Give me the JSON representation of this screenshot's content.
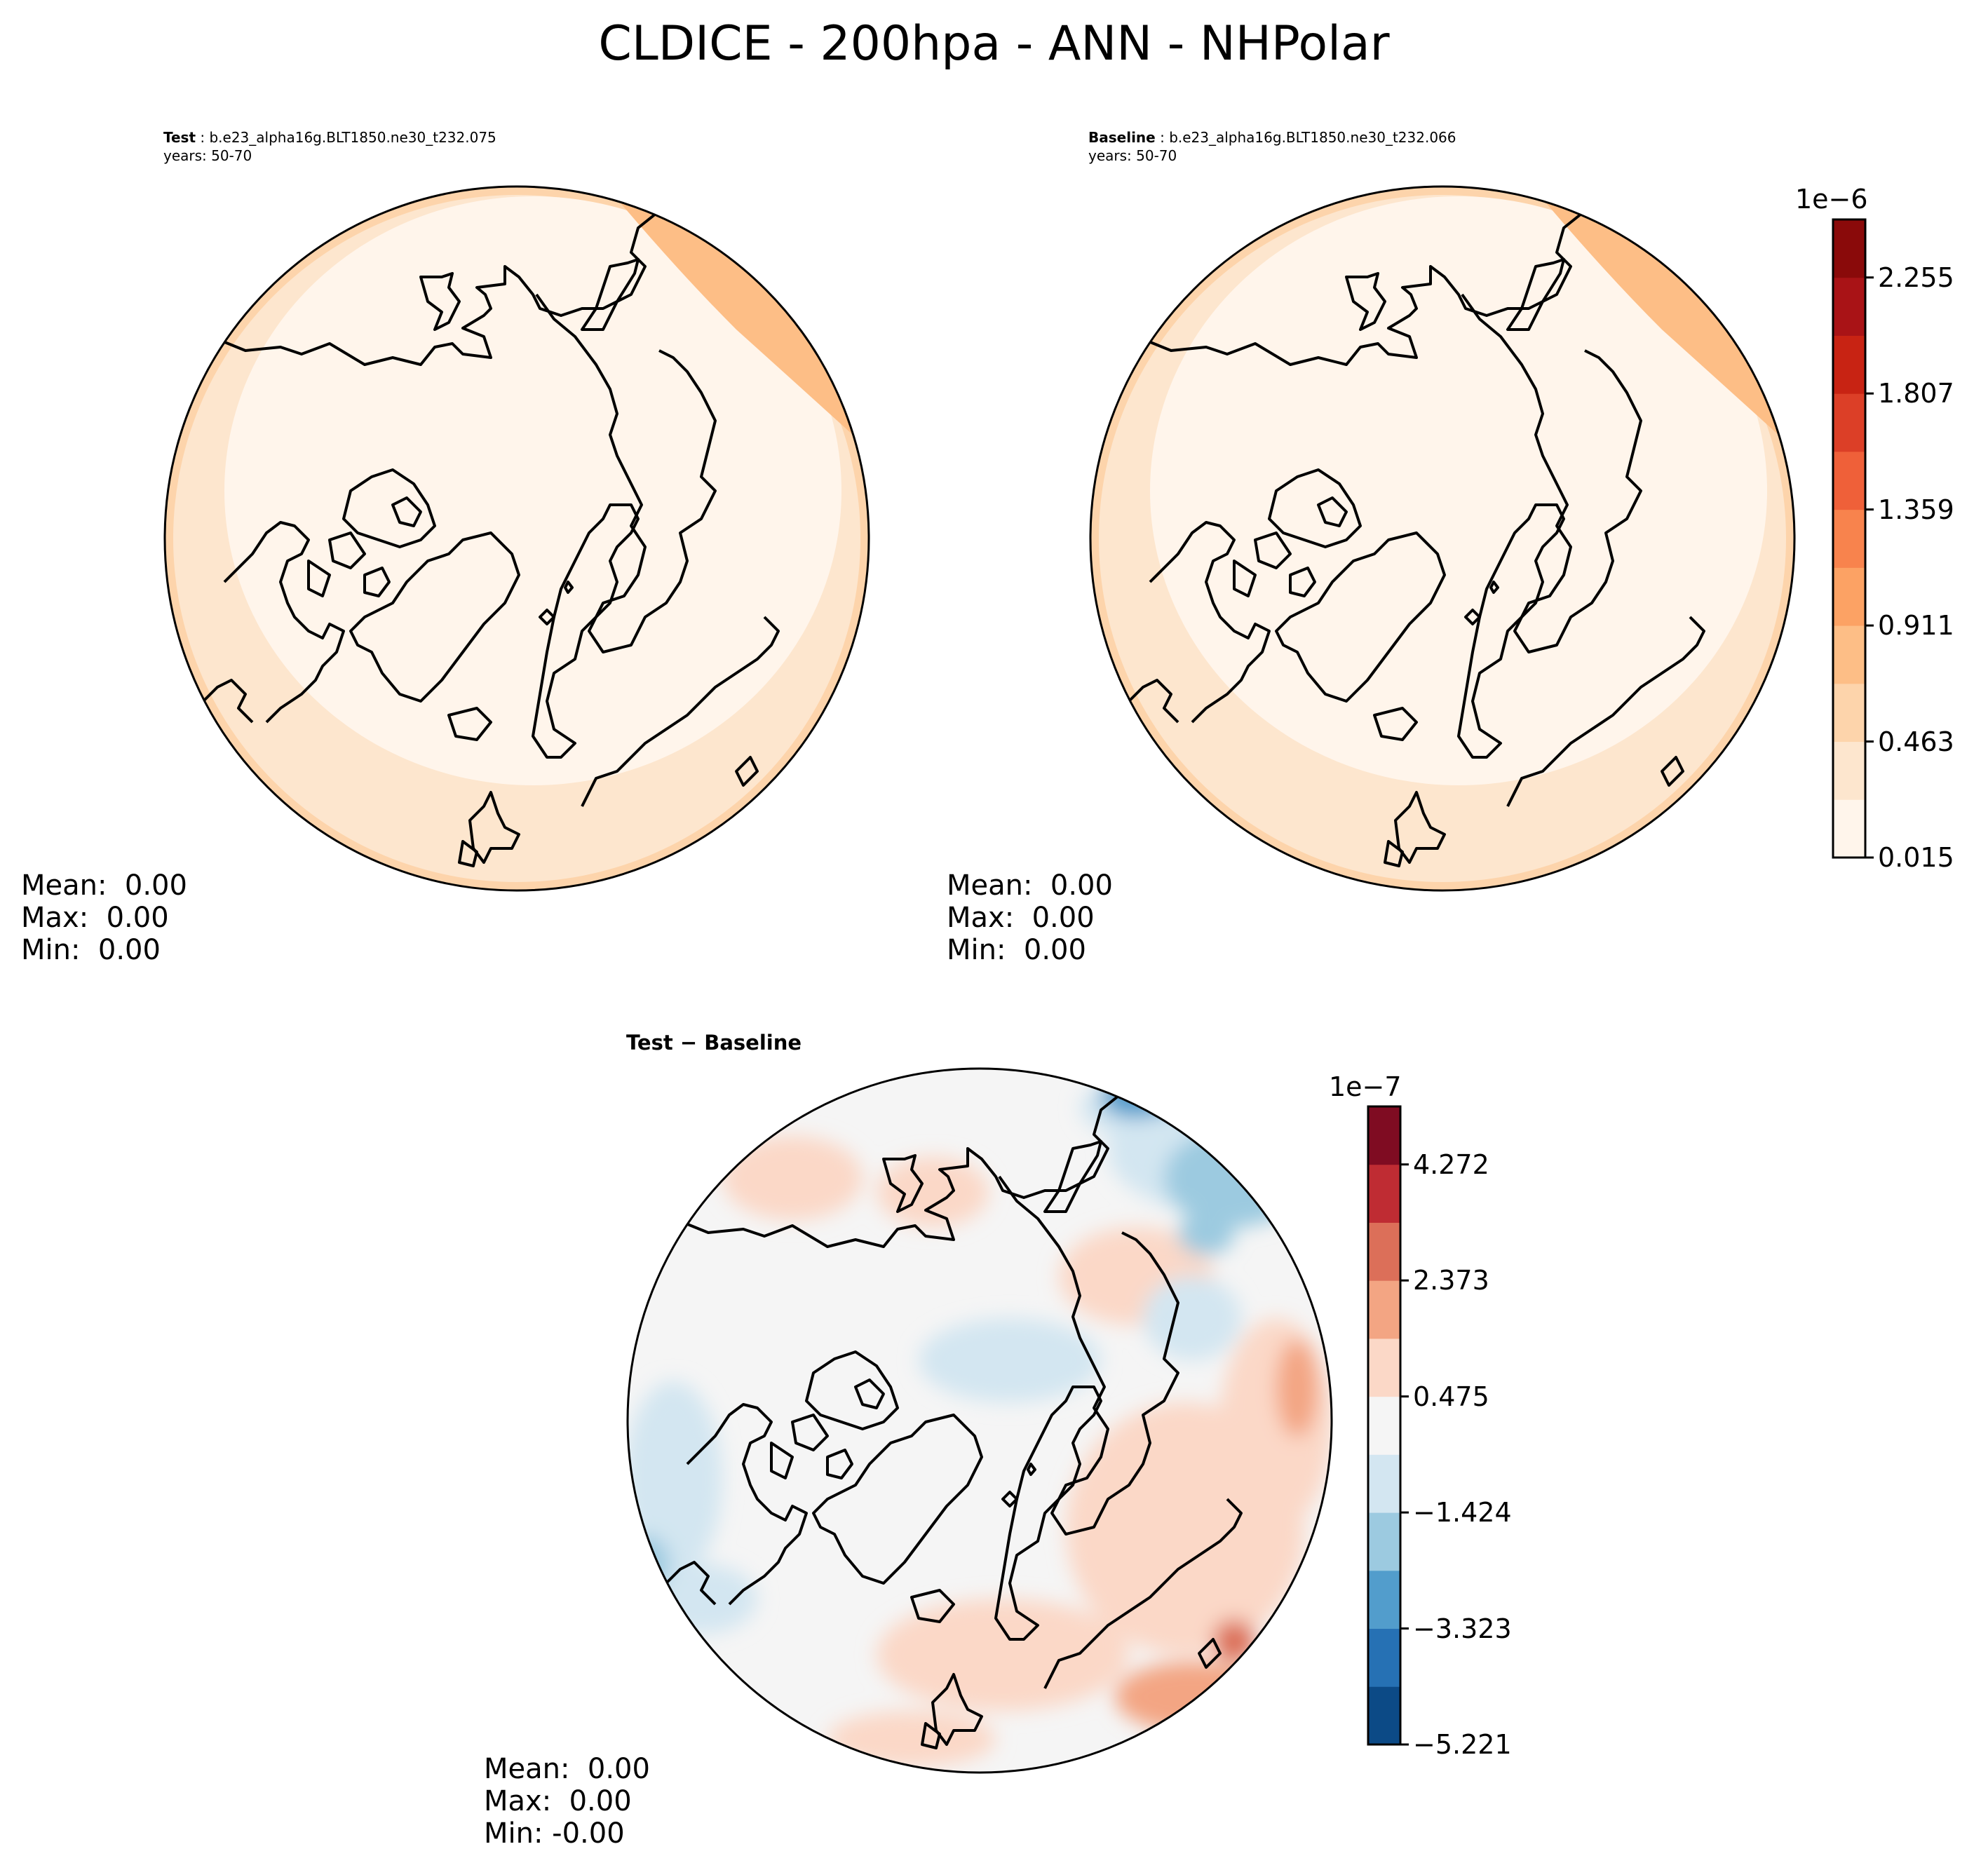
{
  "title": "CLDICE - 200hpa - ANN - NHPolar",
  "panels": {
    "test": {
      "label_bold": "Test",
      "case": " : b.e23_alpha16g.BLT1850.ne30_t232.075",
      "years": "years: 50-70",
      "stats": {
        "mean": "Mean:  0.00",
        "max": "Max:  0.00",
        "min": "Min:  0.00"
      }
    },
    "baseline": {
      "label_bold": "Baseline",
      "case": " : b.e23_alpha16g.BLT1850.ne30_t232.066",
      "years": "years: 50-70",
      "stats": {
        "mean": "Mean:  0.00",
        "max": "Max:  0.00",
        "min": "Min:  0.00"
      }
    },
    "diff": {
      "label": "Test − Baseline",
      "stats": {
        "mean": "Mean:  0.00",
        "max": "Max:  0.00",
        "min": "Min: -0.00"
      }
    }
  },
  "colorbars": {
    "main": {
      "scale": "1e−6",
      "ticks": [
        "2.255",
        "1.807",
        "1.359",
        "0.911",
        "0.463",
        "0.015"
      ],
      "colors": [
        "#fff5eb",
        "#fde6ce",
        "#fdd4ab",
        "#fdbe86",
        "#fca264",
        "#f8834d",
        "#ef6039",
        "#dc3f27",
        "#c82313",
        "#a91316",
        "#8a0a0a"
      ]
    },
    "diff": {
      "scale": "1e−7",
      "ticks": [
        "4.272",
        "2.373",
        "0.475",
        "−1.424",
        "−3.323",
        "−5.221"
      ],
      "colors": [
        "#0c4a86",
        "#2671b4",
        "#529dcc",
        "#9ccae0",
        "#d3e6f1",
        "#f5f5f5",
        "#fbd8c7",
        "#f3a583",
        "#dc6f59",
        "#bf2c33",
        "#7f0c22"
      ]
    }
  },
  "chart_data": [
    {
      "type": "heatmap",
      "projection": "north-polar-stereographic",
      "subtitle": "Test : b.e23_alpha16g.BLT1850.ne30_t232.075",
      "colorbar_range": [
        1.5e-08,
        2.478e-06
      ],
      "colorbar_ticks": [
        1.5e-08,
        4.63e-07,
        9.11e-07,
        1.359e-06,
        1.807e-06,
        2.255e-06
      ],
      "pattern": "low values over the pole, highest over the North Atlantic / Europe sector",
      "mean": 0.0,
      "max": 0.0,
      "min": 0.0
    },
    {
      "type": "heatmap",
      "projection": "north-polar-stereographic",
      "subtitle": "Baseline : b.e23_alpha16g.BLT1850.ne30_t232.066",
      "colorbar_range": [
        1.5e-08,
        2.478e-06
      ],
      "colorbar_ticks": [
        1.5e-08,
        4.63e-07,
        9.11e-07,
        1.359e-06,
        1.807e-06,
        2.255e-06
      ],
      "pattern": "low values over the pole, highest over the North Atlantic / Europe sector",
      "mean": 0.0,
      "max": 0.0,
      "min": 0.0
    },
    {
      "type": "heatmap",
      "projection": "north-polar-stereographic",
      "subtitle": "Test − Baseline",
      "colorbar_range": [
        -5.221e-07,
        5.221e-07
      ],
      "colorbar_ticks": [
        -5.221e-07,
        -3.323e-07,
        -1.424e-07,
        4.75e-08,
        2.373e-07,
        4.272e-07
      ],
      "pattern": "near zero; negative over North Atlantic edge, positive over Siberia / Pacific",
      "mean": 0.0,
      "max": 0.0,
      "min": -0.0
    }
  ]
}
